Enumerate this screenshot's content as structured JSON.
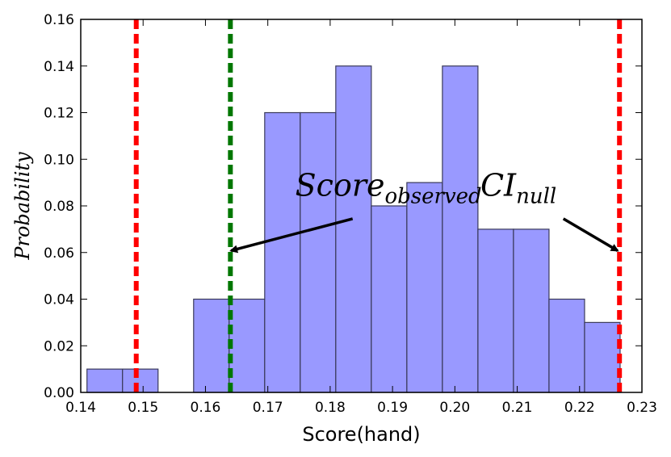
{
  "chart_data": {
    "type": "bar",
    "subtype": "histogram",
    "xlabel": "Score(hand)",
    "ylabel": "Probability",
    "xlim": [
      0.14,
      0.23
    ],
    "ylim": [
      0.0,
      0.16
    ],
    "xticks": [
      "0.14",
      "0.15",
      "0.16",
      "0.17",
      "0.18",
      "0.19",
      "0.20",
      "0.21",
      "0.22",
      "0.23"
    ],
    "yticks": [
      "0.00",
      "0.02",
      "0.04",
      "0.06",
      "0.08",
      "0.10",
      "0.12",
      "0.14",
      "0.16"
    ],
    "bins": [
      {
        "start": 0.141,
        "end": 0.1467,
        "value": 0.01
      },
      {
        "start": 0.1467,
        "end": 0.1524,
        "value": 0.01
      },
      {
        "start": 0.1581,
        "end": 0.1638,
        "value": 0.04
      },
      {
        "start": 0.1638,
        "end": 0.1695,
        "value": 0.04
      },
      {
        "start": 0.1695,
        "end": 0.1752,
        "value": 0.12
      },
      {
        "start": 0.1752,
        "end": 0.1809,
        "value": 0.12
      },
      {
        "start": 0.1809,
        "end": 0.1866,
        "value": 0.14
      },
      {
        "start": 0.1866,
        "end": 0.1923,
        "value": 0.08
      },
      {
        "start": 0.1923,
        "end": 0.198,
        "value": 0.09
      },
      {
        "start": 0.198,
        "end": 0.2037,
        "value": 0.14
      },
      {
        "start": 0.2037,
        "end": 0.2094,
        "value": 0.07
      },
      {
        "start": 0.2094,
        "end": 0.2151,
        "value": 0.07
      },
      {
        "start": 0.2151,
        "end": 0.2208,
        "value": 0.04
      },
      {
        "start": 0.2208,
        "end": 0.2265,
        "value": 0.03
      }
    ],
    "bar_color": "#9999ff",
    "bar_edge_color": "#3a3a5a",
    "vlines": [
      {
        "x": 0.1489,
        "color": "#ff0000",
        "style": "dashed"
      },
      {
        "x": 0.164,
        "color": "#007700",
        "style": "dashed"
      },
      {
        "x": 0.2264,
        "color": "#ff0000",
        "style": "dashed"
      }
    ],
    "annotations": [
      {
        "main": "Score",
        "sub": "observed",
        "text_x": 0.1744,
        "text_y": 0.0843,
        "arrow_from": [
          0.1836,
          0.0745
        ],
        "arrow_to": [
          0.1641,
          0.0608
        ]
      },
      {
        "main": "CI",
        "sub": "null",
        "text_x": 0.2041,
        "text_y": 0.0843,
        "arrow_from": [
          0.2174,
          0.0745
        ],
        "arrow_to": [
          0.2261,
          0.0608
        ]
      }
    ]
  }
}
